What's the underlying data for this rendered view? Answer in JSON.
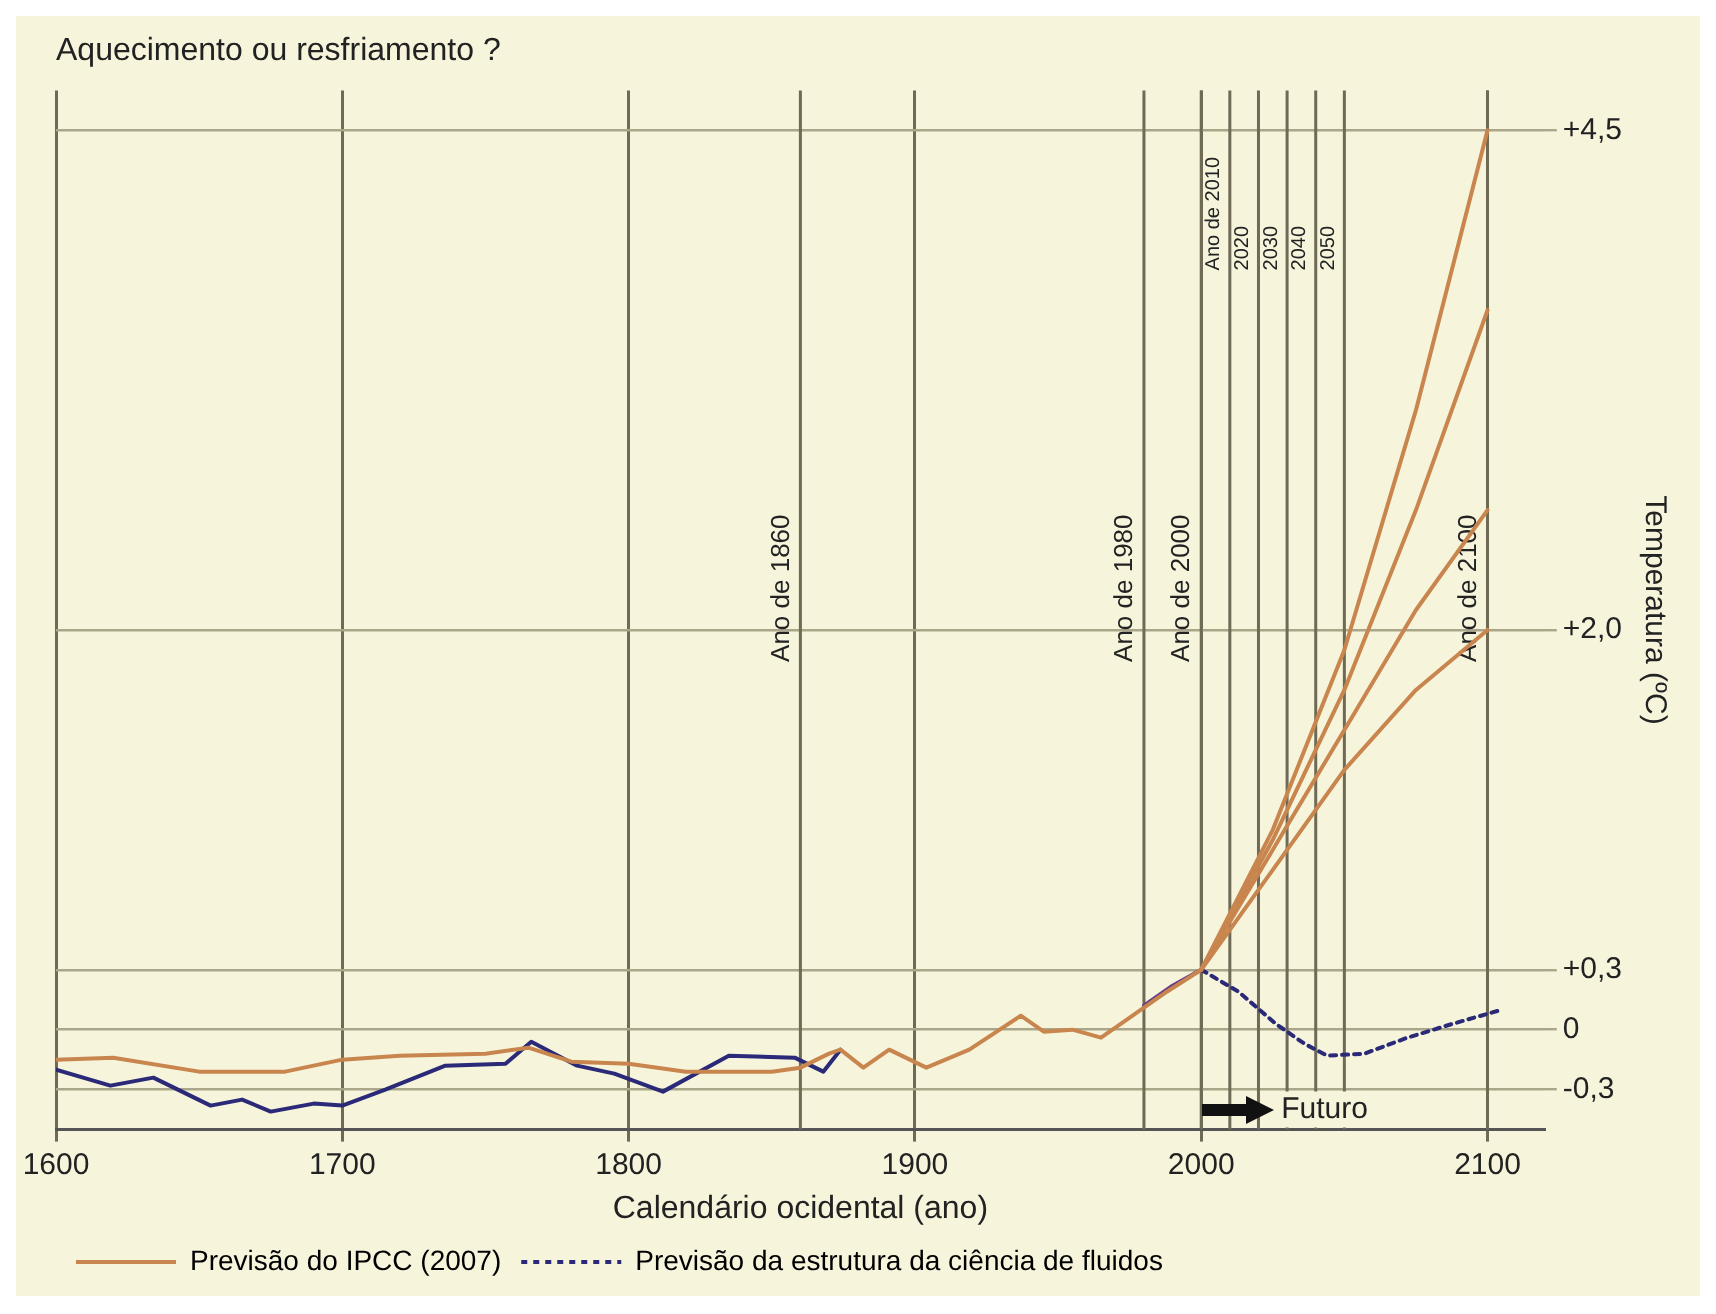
{
  "chart_data": {
    "type": "line",
    "title": "Aquecimento ou resfriamento ?",
    "xlabel": "Calendário ocidental (ano)",
    "ylabel": "Temperatura (ºC)",
    "xlim": [
      1600,
      2120
    ],
    "xticks": [
      1600,
      1700,
      1800,
      1900,
      2000,
      2100
    ],
    "ylim": [
      -0.5,
      4.7
    ],
    "yticks": [
      {
        "value": 4.5,
        "label": "+4,5"
      },
      {
        "value": 2.0,
        "label": "+2,0"
      },
      {
        "value": 0.3,
        "label": "+0,3"
      },
      0,
      {
        "value": -0.3,
        "label": "-0,3"
      }
    ],
    "grid": true,
    "legend": "bottom",
    "marker": "none",
    "series": [
      {
        "name": "Previsão do IPCC (2007)",
        "color": "#c8864e",
        "line_style": "solid",
        "x": [
          1600,
          1620,
          1650,
          1680,
          1700,
          1720,
          1750,
          1765,
          1780,
          1800,
          1820,
          1850,
          1860,
          1870,
          1874,
          1882,
          1891,
          1904,
          1919,
          1937,
          1945,
          1955,
          1965,
          1978,
          1988,
          2000,
          2025,
          2050,
          2075,
          2100
        ],
        "values": [
          -0.15,
          -0.14,
          -0.21,
          -0.21,
          -0.15,
          -0.13,
          -0.12,
          -0.09,
          -0.16,
          -0.17,
          -0.21,
          -0.21,
          -0.19,
          -0.12,
          -0.1,
          -0.19,
          -0.1,
          -0.19,
          -0.1,
          0.07,
          -0.01,
          0.0,
          -0.04,
          0.09,
          0.19,
          0.3,
          1.0,
          1.9,
          3.1,
          4.5
        ]
      },
      {
        "color": "#c8864e",
        "line_style": "solid",
        "x": [
          2000,
          2025,
          2050,
          2075,
          2100
        ],
        "values": [
          0.3,
          0.95,
          1.7,
          2.6,
          3.6
        ]
      },
      {
        "color": "#c8864e",
        "line_style": "solid",
        "x": [
          2000,
          2025,
          2050,
          2075,
          2100
        ],
        "values": [
          0.3,
          0.9,
          1.5,
          2.1,
          2.6
        ]
      },
      {
        "color": "#c8864e",
        "line_style": "solid",
        "x": [
          2000,
          2025,
          2050,
          2075,
          2100
        ],
        "values": [
          0.3,
          0.8,
          1.3,
          1.7,
          2.0
        ]
      },
      {
        "color": "#2b2a78",
        "line_style": "solid",
        "x": [
          1600,
          1619,
          1634,
          1654,
          1665,
          1675,
          1690,
          1700,
          1715,
          1736,
          1757,
          1766,
          1782,
          1795,
          1812,
          1835,
          1858,
          1868,
          1874
        ],
        "values": [
          -0.2,
          -0.28,
          -0.24,
          -0.38,
          -0.35,
          -0.41,
          -0.37,
          -0.38,
          -0.3,
          -0.18,
          -0.17,
          -0.06,
          -0.18,
          -0.22,
          -0.31,
          -0.13,
          -0.14,
          -0.21,
          -0.1
        ]
      },
      {
        "color": "#6a3f8a",
        "line_style": "solid",
        "x": [
          1980,
          1990,
          2000
        ],
        "values": [
          0.12,
          0.22,
          0.3
        ]
      },
      {
        "name": "Previsão da estrutura da ciência de fluidos",
        "color": "#2b2a78",
        "line_style": "dotted",
        "x": [
          2000,
          2013,
          2026,
          2036,
          2044,
          2057,
          2072,
          2088,
          2105
        ],
        "values": [
          0.3,
          0.19,
          0.03,
          -0.07,
          -0.13,
          -0.12,
          -0.04,
          0.03,
          0.1
        ]
      }
    ],
    "ref_lines": [
      {
        "axis": "x",
        "value": 1860,
        "label": "Ano de 1860"
      },
      {
        "axis": "x",
        "value": 1980,
        "label": "Ano de 1980"
      },
      {
        "axis": "x",
        "value": 2000,
        "label": "Ano de 2000"
      },
      {
        "axis": "x",
        "value": 2010,
        "label": "Ano de 2010"
      },
      {
        "axis": "x",
        "value": 2020,
        "label": "2020"
      },
      {
        "axis": "x",
        "value": 2030,
        "label": "2030"
      },
      {
        "axis": "x",
        "value": 2040,
        "label": "2040"
      },
      {
        "axis": "x",
        "value": 2050,
        "label": "2050"
      },
      {
        "axis": "x",
        "value": 2100,
        "label": "Ano de 2100"
      }
    ],
    "annotations": [
      {
        "text": "Futuro",
        "x": 2000,
        "y": -0.4
      }
    ]
  }
}
